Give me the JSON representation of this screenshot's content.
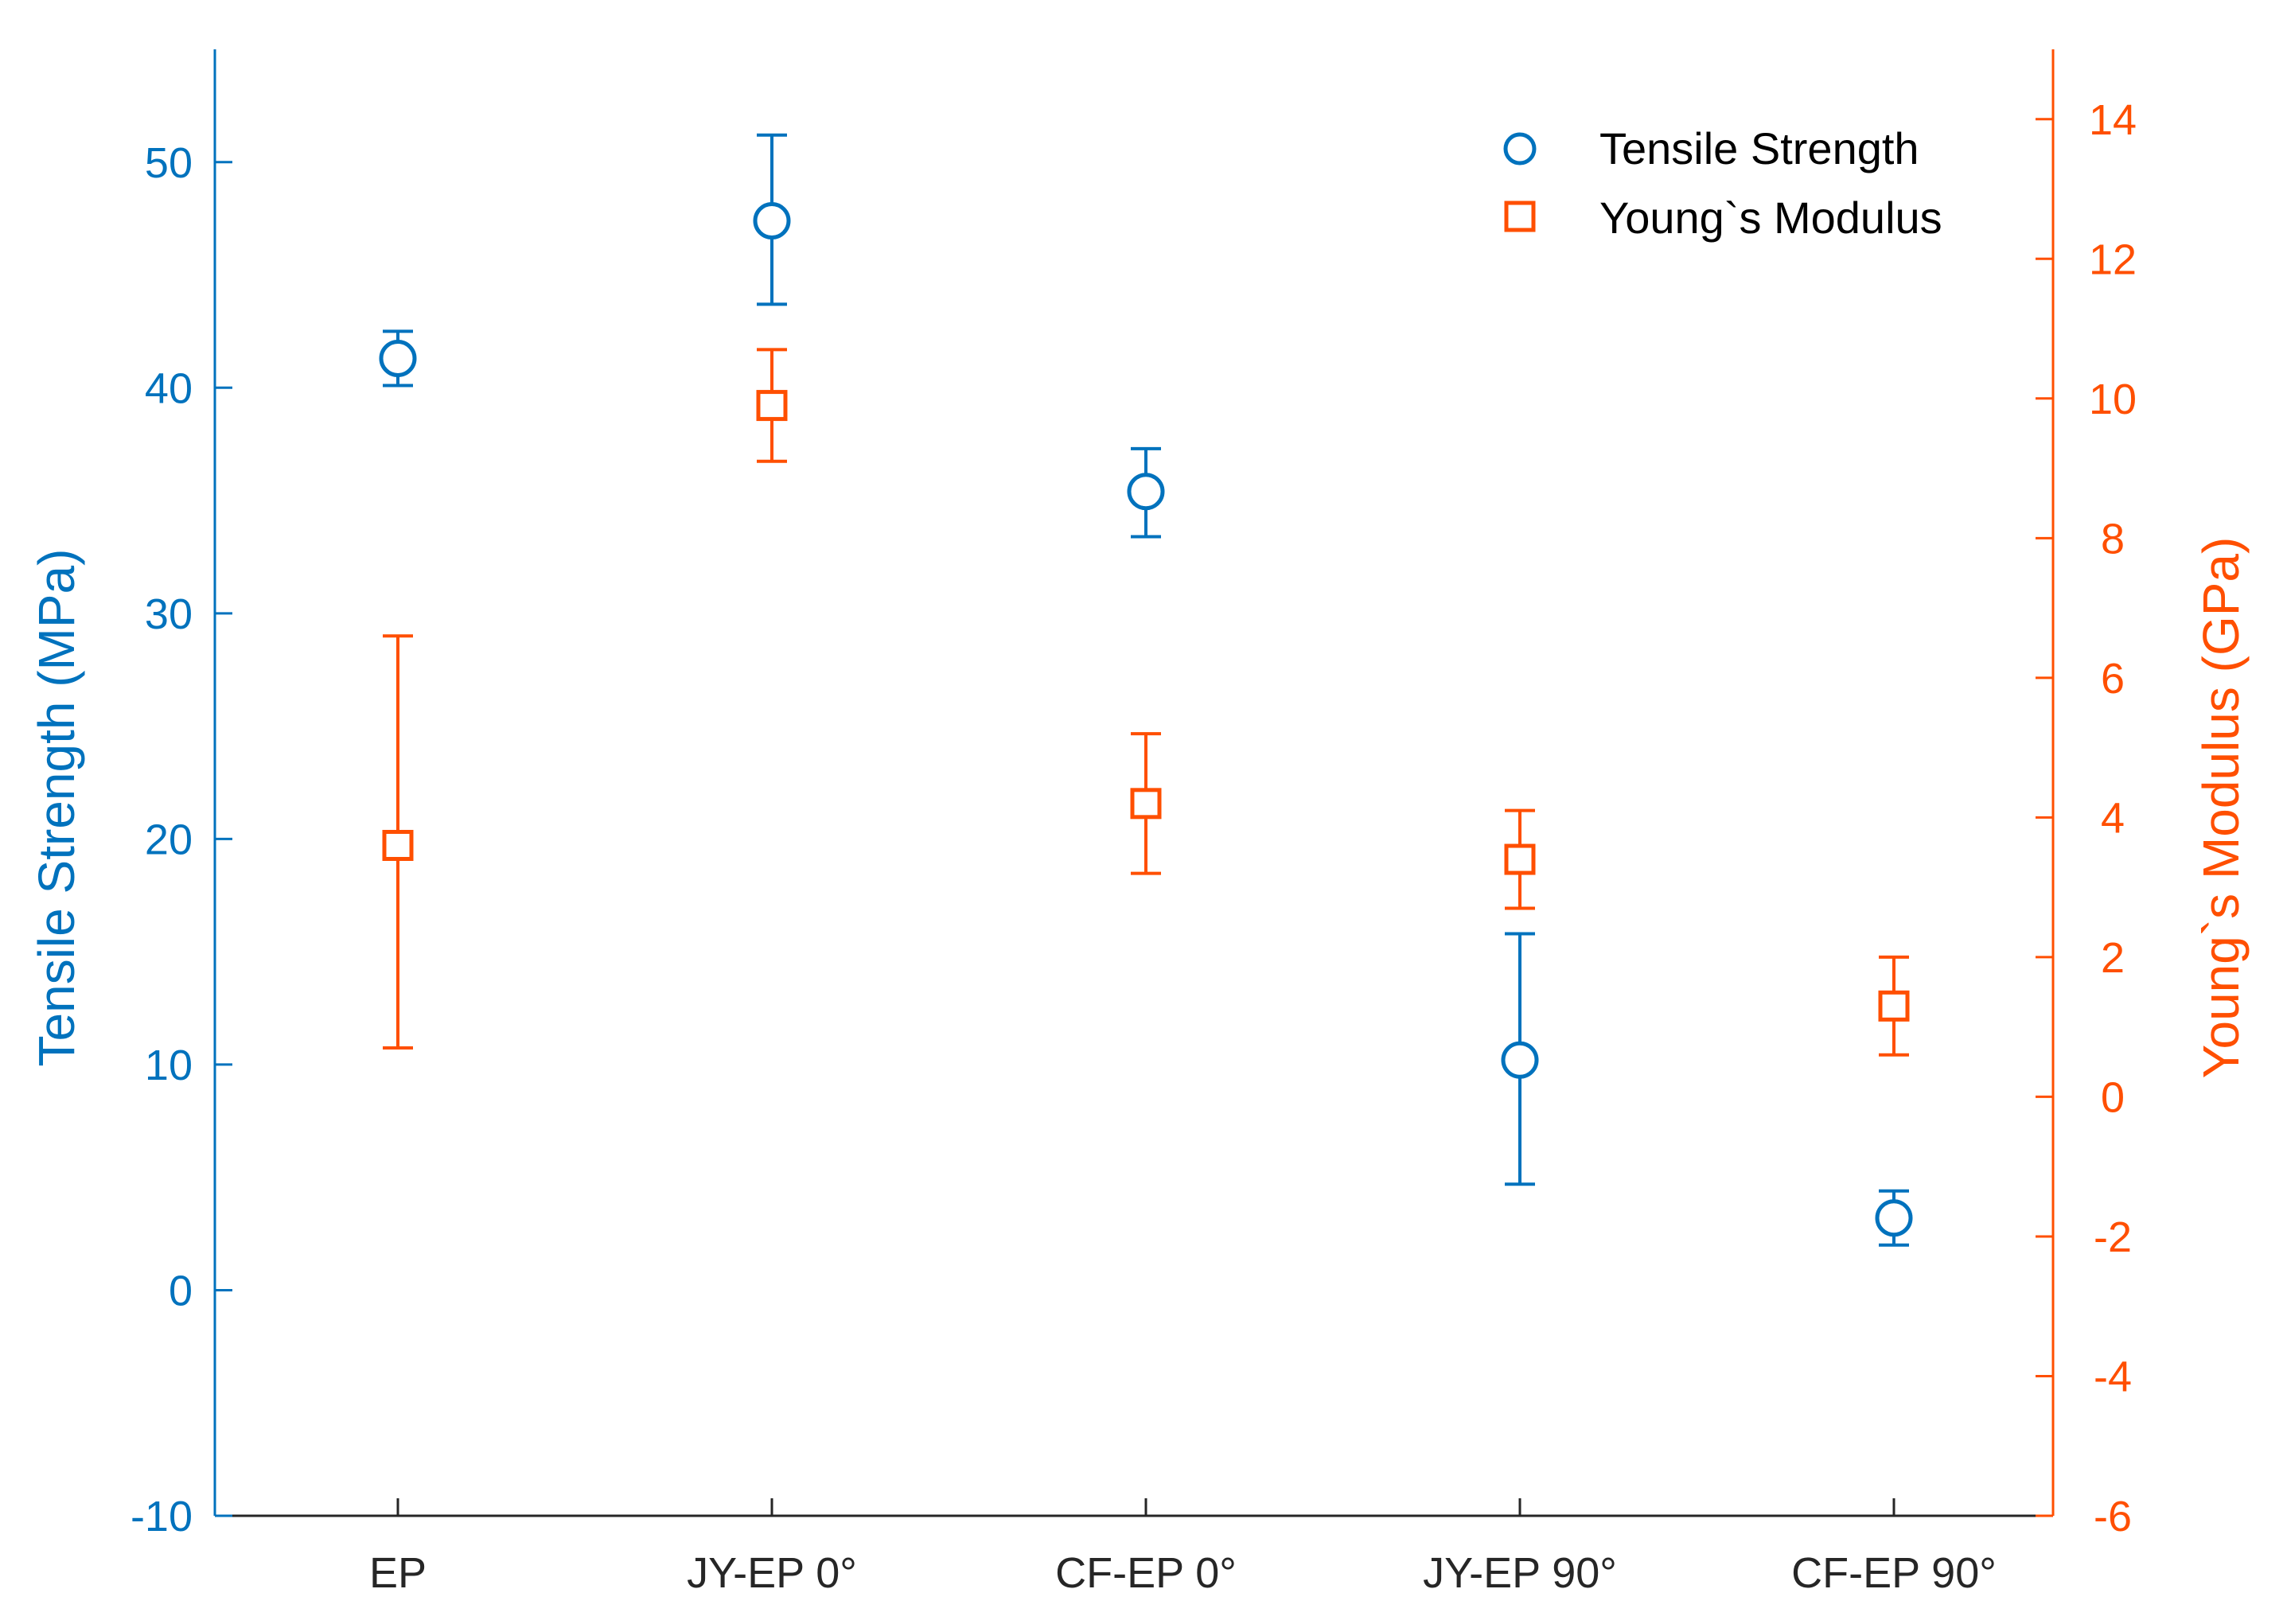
{
  "colors": {
    "left_axis": "#0072BD",
    "right_axis": "#FF4F00",
    "x_axis": "#262626",
    "background": "#FFFFFF"
  },
  "chart_data": {
    "type": "scatter",
    "categories": [
      "EP",
      "JY-EP 0°",
      "CF-EP 0°",
      "JY-EP 90°",
      "CF-EP 90°"
    ],
    "left_axis": {
      "label": "Tensile Strength (MPa)",
      "ylim": [
        -10,
        55
      ],
      "ticks": [
        -10,
        0,
        10,
        20,
        30,
        40,
        50
      ],
      "tick_labels": [
        "-10",
        "0",
        "10",
        "20",
        "30",
        "40",
        "50"
      ]
    },
    "right_axis": {
      "label": "Young`s Modulus (GPa)",
      "ylim": [
        -6,
        15
      ],
      "ticks": [
        -6,
        -4,
        -2,
        0,
        2,
        4,
        6,
        8,
        10,
        12,
        14
      ],
      "tick_labels": [
        "-6",
        "-4",
        "-2",
        "0",
        "2",
        "4",
        "6",
        "8",
        "10",
        "12",
        "14"
      ]
    },
    "series": [
      {
        "name": "Tensile Strength",
        "axis": "left",
        "marker": "circle",
        "values": [
          41.3,
          47.4,
          35.4,
          10.2,
          3.2
        ],
        "err_low": [
          40.1,
          43.7,
          33.4,
          4.7,
          2.0
        ],
        "err_high": [
          42.5,
          51.2,
          37.3,
          15.8,
          4.4
        ]
      },
      {
        "name": "Young`s Modulus",
        "axis": "right",
        "marker": "square",
        "values": [
          3.6,
          9.9,
          4.2,
          3.4,
          1.3
        ],
        "err_low": [
          0.7,
          9.1,
          3.2,
          2.7,
          0.6
        ],
        "err_high": [
          6.6,
          10.7,
          5.2,
          4.1,
          2.0
        ]
      }
    ],
    "legend": {
      "position": "top-right",
      "entries": [
        "Tensile Strength",
        "Young`s Modulus"
      ]
    },
    "grid": false
  }
}
